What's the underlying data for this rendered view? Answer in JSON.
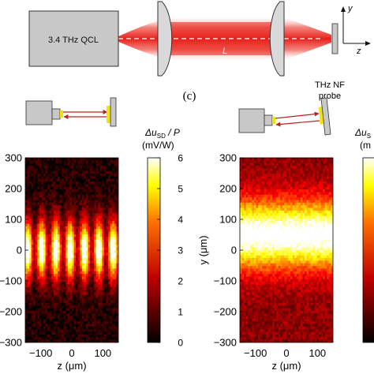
{
  "figure": {
    "setup": {
      "source_label": "3.4 THz QCL",
      "path_label": "L",
      "probe_label_line1": "THz NF",
      "probe_label_line2": "probe",
      "axis_y": "y",
      "axis_z": "z"
    },
    "panel_c_label": "(c)",
    "colorbar_left": {
      "label_line1": "Δu",
      "label_sub": "SD",
      "label_tail": " / P",
      "label_line2": "(mV/W)",
      "ticks": [
        "6",
        "5",
        "4",
        "3",
        "2",
        "1",
        "0"
      ]
    },
    "colorbar_right": {
      "label_line1": "Δu",
      "label_sub": "S",
      "label_line2": "(m"
    },
    "colors": {
      "beam": "#e8201a",
      "box_fill": "#c8c8c8",
      "lens_fill": "#d9d9d9",
      "probe_highlight": "#f5e400",
      "arrow": "#b3261e"
    }
  },
  "chart_data": [
    {
      "type": "heatmap",
      "panel": "left",
      "xlabel": "z (μm)",
      "ylabel": "",
      "x_ticks": [
        -100,
        0,
        100
      ],
      "y_ticks": [
        300,
        200,
        100,
        0,
        -100,
        -200,
        -300
      ],
      "xlim": [
        -150,
        150
      ],
      "ylim": [
        -300,
        300
      ],
      "colorbar_range": [
        0,
        6
      ],
      "colormap": "hot",
      "pattern": "standing-wave fringes along z (~6 bright stripes, period ~45 μm), beam waist centered near y = 0, peak ~6 mV/W"
    },
    {
      "type": "heatmap",
      "panel": "right",
      "xlabel": "z (μm)",
      "ylabel": "y (μm)",
      "x_ticks": [
        -100,
        0,
        100
      ],
      "y_ticks": [
        300,
        200,
        100,
        0,
        -100,
        -200,
        -300
      ],
      "xlim": [
        -150,
        150
      ],
      "ylim": [
        -300,
        300
      ],
      "colormap": "hot",
      "pattern": "smooth horizontal band centered near y = 50 μm with no standing-wave fringes"
    }
  ]
}
